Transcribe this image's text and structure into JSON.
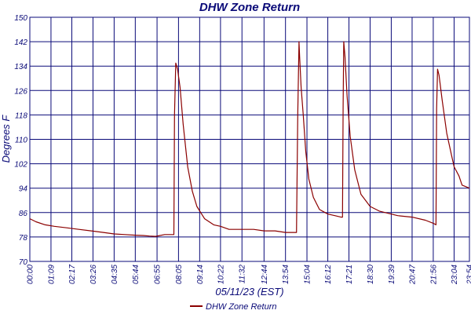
{
  "chart_data": {
    "type": "line",
    "title": "DHW Zone Return",
    "xlabel": "05/11/23 (EST)",
    "ylabel": "Degrees F",
    "ylim": [
      70,
      150
    ],
    "y_ticks": [
      "70",
      "78",
      "86",
      "94",
      "102",
      "110",
      "118",
      "126",
      "134",
      "142",
      "150"
    ],
    "x_ticks": [
      "00:00",
      "01:09",
      "02:17",
      "03:26",
      "04:35",
      "05:44",
      "06:55",
      "08:05",
      "09:14",
      "10:22",
      "11:32",
      "12:44",
      "13:54",
      "15:04",
      "16:12",
      "17:21",
      "18:30",
      "19:39",
      "20:47",
      "21:56",
      "23:04",
      "23:54"
    ],
    "xlim": [
      "00:00",
      "23:54"
    ],
    "grid": true,
    "legend_position": "bottom",
    "series": [
      {
        "name": "DHW Zone Return",
        "color": "#8b0000",
        "x": [
          "00:00",
          "00:20",
          "00:50",
          "01:20",
          "02:00",
          "02:40",
          "03:20",
          "04:00",
          "04:35",
          "05:10",
          "05:44",
          "06:10",
          "06:30",
          "06:50",
          "07:20",
          "07:50",
          "07:52",
          "07:56",
          "08:02",
          "08:10",
          "08:20",
          "08:35",
          "08:50",
          "09:05",
          "09:30",
          "10:00",
          "10:22",
          "10:50",
          "11:32",
          "12:10",
          "12:44",
          "13:20",
          "13:54",
          "14:30",
          "14:34",
          "14:38",
          "14:40",
          "14:45",
          "14:52",
          "15:00",
          "15:10",
          "15:25",
          "15:45",
          "16:12",
          "16:35",
          "16:55",
          "17:00",
          "17:02",
          "17:04",
          "17:08",
          "17:15",
          "17:25",
          "17:40",
          "18:00",
          "18:30",
          "19:00",
          "19:39",
          "20:00",
          "20:47",
          "21:30",
          "21:56",
          "22:05",
          "22:07",
          "22:10",
          "22:15",
          "22:25",
          "22:40",
          "22:55",
          "23:04",
          "23:20",
          "23:30",
          "23:54"
        ],
        "values": [
          84,
          83,
          82,
          81.5,
          81,
          80.5,
          80,
          79.5,
          79,
          78.8,
          78.6,
          78.5,
          78.3,
          78.2,
          78.8,
          78.8,
          118,
          135,
          133,
          127,
          115,
          101,
          93,
          88,
          84,
          82,
          81.5,
          80.5,
          80.5,
          80.5,
          80,
          80,
          79.5,
          79.5,
          118,
          142,
          137,
          127,
          118,
          106,
          97,
          91,
          87,
          85.5,
          85,
          84.5,
          84.5,
          121,
          142,
          137,
          124,
          111,
          100,
          92,
          88,
          86.5,
          85.5,
          85,
          84.5,
          83.5,
          82.5,
          82,
          120,
          133,
          131,
          123,
          112,
          105,
          101,
          98,
          95,
          94
        ]
      }
    ]
  }
}
